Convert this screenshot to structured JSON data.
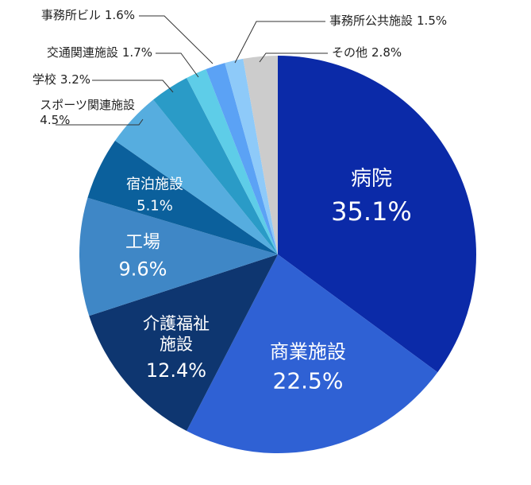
{
  "chart_data": {
    "type": "pie",
    "categories": [
      "病院",
      "商業施設",
      "介護福祉施設",
      "工場",
      "宿泊施設",
      "スポーツ関連施設",
      "学校",
      "交通関連施設",
      "事務所ビル",
      "事務所公共施設",
      "その他"
    ],
    "values": [
      35.1,
      22.5,
      12.4,
      9.6,
      5.1,
      4.5,
      3.2,
      1.7,
      1.6,
      1.5,
      2.8
    ],
    "value_labels": [
      "35.1%",
      "22.5%",
      "12.4%",
      "9.6%",
      "5.1%",
      "4.5%",
      "3.2%",
      "1.7%",
      "1.6%",
      "1.5%",
      "2.8%"
    ],
    "colors": [
      "#0b2aa8",
      "#2f61d4",
      "#0e3670",
      "#3f87c6",
      "#0b609c",
      "#56addf",
      "#2a9bc7",
      "#5ecde8",
      "#5ba2f5",
      "#8ecaf9",
      "#cccccc"
    ]
  }
}
